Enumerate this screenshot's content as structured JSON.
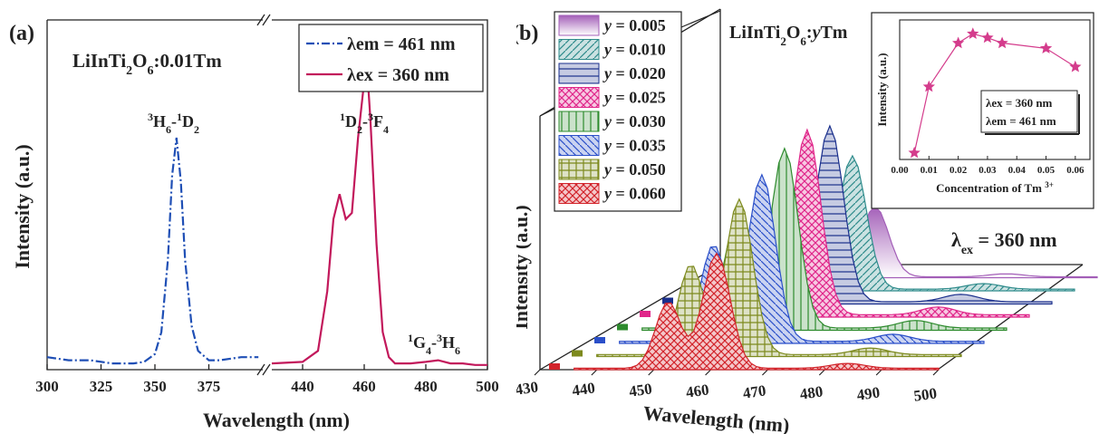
{
  "chart_data": [
    {
      "panel": "(a)",
      "type": "line",
      "title": "LiInTi₂O₆:0.01Tm",
      "xlabel": "Wavelength (nm)",
      "ylabel": "Intensity (a.u.)",
      "xlim_left": [
        300,
        400
      ],
      "xlim_right": [
        430,
        500
      ],
      "xticks_left": [
        "300",
        "325",
        "350",
        "375"
      ],
      "xticks_right": [
        "440",
        "460",
        "480",
        "500"
      ],
      "legend": [
        "λem = 461 nm",
        "λex = 360 nm"
      ],
      "legend_position": "top-right",
      "annotations": [
        {
          "sup1": "3",
          "a": "H",
          "sub1": "6",
          "dash": "-",
          "sup2": "1",
          "b": "D",
          "sub2": "2"
        },
        {
          "sup1": "1",
          "a": "D",
          "sub1": "2",
          "dash": "-",
          "sup2": "3",
          "b": "F",
          "sub2": "4"
        },
        {
          "sup1": "1",
          "a": "G",
          "sub1": "4",
          "dash": "-",
          "sup2": "3",
          "b": "H",
          "sub2": "6"
        }
      ],
      "series": [
        {
          "name": "λem = 461 nm",
          "color": "#1f4fb5",
          "style": "dash-dot",
          "x": [
            300,
            310,
            320,
            330,
            340,
            345,
            350,
            353,
            356,
            358,
            360,
            362,
            364,
            367,
            370,
            375,
            380,
            390,
            398
          ],
          "y": [
            0.04,
            0.03,
            0.03,
            0.02,
            0.02,
            0.025,
            0.05,
            0.12,
            0.35,
            0.62,
            0.74,
            0.6,
            0.35,
            0.14,
            0.06,
            0.03,
            0.03,
            0.04,
            0.04
          ]
        },
        {
          "name": "λex = 360 nm",
          "color": "#c2185b",
          "style": "solid",
          "x": [
            430,
            440,
            445,
            448,
            450,
            452,
            454,
            456,
            458,
            460,
            461,
            462,
            464,
            466,
            468,
            470,
            475,
            480,
            484,
            488,
            492,
            496,
            500
          ],
          "y": [
            0.02,
            0.025,
            0.06,
            0.25,
            0.48,
            0.56,
            0.48,
            0.5,
            0.74,
            0.92,
            0.95,
            0.8,
            0.4,
            0.12,
            0.04,
            0.02,
            0.02,
            0.025,
            0.03,
            0.02,
            0.02,
            0.015,
            0.015
          ]
        }
      ]
    },
    {
      "panel": "(b)",
      "type": "area",
      "title": "LiInTi₂O₆:yTm",
      "xlabel": "Wavelength (nm)",
      "ylabel": "Intensity (a.u.)",
      "xlim": [
        430,
        500
      ],
      "xticks": [
        "430",
        "440",
        "450",
        "460",
        "470",
        "480",
        "490",
        "500"
      ],
      "excitation_label": "λex = 360 nm",
      "legend": [
        "y = 0.005",
        "y = 0.010",
        "y = 0.020",
        "y = 0.025",
        "y = 0.030",
        "y = 0.035",
        "y = 0.050",
        "y = 0.060"
      ],
      "series": [
        {
          "name": "y = 0.005",
          "color": "#a35fb8",
          "pattern": "solid",
          "peak": 0.38
        },
        {
          "name": "y = 0.010",
          "color": "#2e8b8b",
          "pattern": "diag",
          "peak": 0.72
        },
        {
          "name": "y = 0.020",
          "color": "#1a2f8c",
          "pattern": "horiz",
          "peak": 0.95
        },
        {
          "name": "y = 0.025",
          "color": "#e0268a",
          "pattern": "cross",
          "peak": 1.0
        },
        {
          "name": "y = 0.030",
          "color": "#2e8b2e",
          "pattern": "vert",
          "peak": 0.97
        },
        {
          "name": "y = 0.035",
          "color": "#2a4fc9",
          "pattern": "diag2",
          "peak": 0.9
        },
        {
          "name": "y = 0.050",
          "color": "#7d8a1e",
          "pattern": "grid",
          "peak": 0.84
        },
        {
          "name": "y = 0.060",
          "color": "#d2232a",
          "pattern": "cross",
          "peak": 0.62
        }
      ],
      "inset": {
        "type": "line",
        "xlabel": "Concentration of Tm",
        "xlabel_sup": "3+",
        "ylabel": "Intensity (a.u.)",
        "xticks": [
          "0.00",
          "0.01",
          "0.02",
          "0.03",
          "0.04",
          "0.05",
          "0.06"
        ],
        "xlim": [
          0,
          0.065
        ],
        "note_lines": [
          "λex = 360 nm",
          "λem = 461 nm"
        ],
        "x": [
          0.005,
          0.01,
          0.02,
          0.025,
          0.03,
          0.035,
          0.05,
          0.06
        ],
        "y": [
          0.05,
          0.55,
          0.88,
          0.95,
          0.92,
          0.88,
          0.84,
          0.7
        ],
        "color": "#d43c8c"
      }
    }
  ],
  "text": {
    "panel_a": "(a)",
    "panel_b": "(b)",
    "title_a_pre": "LiInTi",
    "title_a_sub1": "2",
    "title_a_mid": "O",
    "title_a_sub2": "6",
    "title_a_post": ":0.01Tm",
    "title_b_pre": "LiInTi",
    "title_b_sub1": "2",
    "title_b_mid": "O",
    "title_b_sub2": "6",
    "title_b_post1": ":",
    "title_b_y": "y",
    "title_b_post2": "Tm",
    "lambda_ex_big_pre": "λ",
    "lambda_ex_big_sub": "ex",
    "lambda_ex_big_post": " = 360 nm"
  }
}
